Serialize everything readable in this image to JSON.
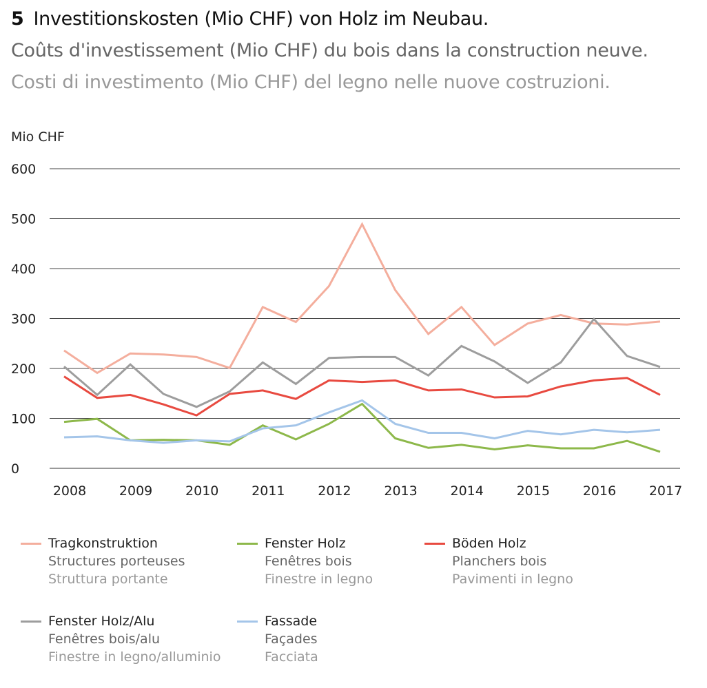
{
  "title": {
    "number": "5",
    "de": "Investitionskosten (Mio CHF) von Holz im Neubau.",
    "fr": "Coûts d'investissement (Mio CHF) du bois dans la construction neuve.",
    "it": "Costi di investimento (Mio CHF) del legno nelle nuove costruzioni."
  },
  "chart_data": {
    "type": "line",
    "ylabel": "Mio CHF",
    "ylim": [
      0,
      600
    ],
    "yticks": [
      "0",
      "100",
      "200",
      "300",
      "400",
      "500",
      "600"
    ],
    "xticks": [
      "2008",
      "2009",
      "2010",
      "2011",
      "2012",
      "2013",
      "2014",
      "2015",
      "2016",
      "2017"
    ],
    "x": [
      2008,
      2008.5,
      2009,
      2009.5,
      2010,
      2010.5,
      2011,
      2011.5,
      2012,
      2012.5,
      2013,
      2013.5,
      2014,
      2014.5,
      2015,
      2015.5,
      2016,
      2016.5,
      2017
    ],
    "grid": true,
    "legend_position": "bottom",
    "series": [
      {
        "name": "Tragkonstruktion",
        "name_fr": "Structures porteuses",
        "name_it": "Struttura portante",
        "color": "#f4ae9d",
        "values": [
          236,
          191,
          230,
          228,
          223,
          201,
          323,
          293,
          365,
          489,
          357,
          269,
          323,
          247,
          290,
          307,
          290,
          288,
          294
        ]
      },
      {
        "name": "Fenster Holz",
        "name_fr": "Fenêtres bois",
        "name_it": "Finestre in legno",
        "color": "#8db84a",
        "values": [
          93,
          99,
          56,
          57,
          56,
          47,
          86,
          58,
          89,
          129,
          60,
          41,
          47,
          38,
          46,
          40,
          40,
          55,
          33
        ]
      },
      {
        "name": "Böden Holz",
        "name_fr": "Planchers bois",
        "name_it": "Pavimenti in legno",
        "color": "#e84a40",
        "values": [
          184,
          141,
          147,
          128,
          106,
          149,
          156,
          139,
          176,
          173,
          176,
          156,
          158,
          142,
          144,
          164,
          176,
          181,
          147
        ]
      },
      {
        "name": "Fenster Holz/Alu",
        "name_fr": "Fenêtres bois/alu",
        "name_it": "Finestre in legno/alluminio",
        "color": "#9d9d9d",
        "values": [
          204,
          147,
          208,
          149,
          123,
          154,
          212,
          169,
          221,
          223,
          223,
          186,
          245,
          214,
          171,
          212,
          299,
          225,
          203
        ]
      },
      {
        "name": "Fassade",
        "name_fr": "Façades",
        "name_it": "Facciata",
        "color": "#a4c5e9",
        "values": [
          62,
          64,
          56,
          51,
          56,
          54,
          80,
          86,
          112,
          136,
          89,
          71,
          71,
          60,
          75,
          68,
          77,
          72,
          77
        ]
      }
    ]
  }
}
